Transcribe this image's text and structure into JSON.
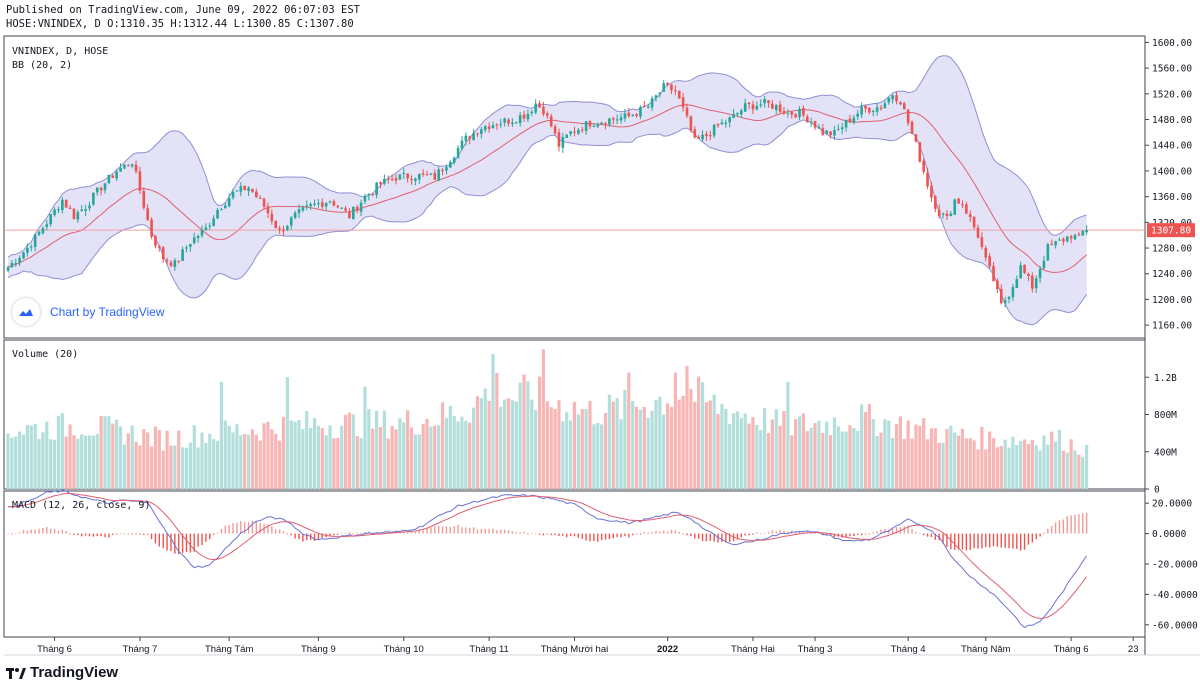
{
  "header": {
    "published": "Published on TradingView.com, June 09, 2022 06:07:03 EST",
    "ohlc": "HOSE:VNINDEX, D O:1310.35 H:1312.44 L:1300.85 C:1307.80"
  },
  "footer": {
    "brand": "TradingView"
  },
  "badge": {
    "label": "Chart by TradingView"
  },
  "colors": {
    "up": "#26a69a",
    "down": "#ef5350",
    "vol_up": "#b2dfdb",
    "vol_down": "#f7b6b5",
    "band_fill": "#e3e2f6",
    "band_line": "#8f8fd6",
    "basis": "#e06070",
    "macd": "#6b72d6",
    "signal": "#e06070"
  },
  "chart_data": [
    {
      "type": "candlestick",
      "title": "VNINDEX, D, HOSE",
      "indicator_label": "BB (20, 2)",
      "last_price_label": "1307.80",
      "ylim": [
        1140,
        1610
      ],
      "yticks": [
        1160,
        1200,
        1240,
        1280,
        1320,
        1360,
        1400,
        1440,
        1480,
        1520,
        1560,
        1600
      ],
      "ytick_labels": [
        "1160.00",
        "1200.00",
        "1240.00",
        "1280.00",
        "1320.00",
        "1360.00",
        "1400.00",
        "1440.00",
        "1480.00",
        "1520.00",
        "1560.00",
        "1600.00"
      ],
      "close_anchors": [
        [
          0,
          1250
        ],
        [
          5,
          1280
        ],
        [
          10,
          1320
        ],
        [
          14,
          1355
        ],
        [
          17,
          1330
        ],
        [
          20,
          1345
        ],
        [
          24,
          1375
        ],
        [
          28,
          1400
        ],
        [
          32,
          1415
        ],
        [
          34,
          1370
        ],
        [
          37,
          1300
        ],
        [
          40,
          1265
        ],
        [
          43,
          1255
        ],
        [
          47,
          1290
        ],
        [
          51,
          1310
        ],
        [
          54,
          1340
        ],
        [
          58,
          1365
        ],
        [
          62,
          1375
        ],
        [
          66,
          1345
        ],
        [
          70,
          1305
        ],
        [
          74,
          1330
        ],
        [
          78,
          1345
        ],
        [
          83,
          1355
        ],
        [
          88,
          1330
        ],
        [
          92,
          1360
        ],
        [
          96,
          1380
        ],
        [
          100,
          1390
        ],
        [
          105,
          1393
        ],
        [
          110,
          1390
        ],
        [
          114,
          1420
        ],
        [
          118,
          1450
        ],
        [
          122,
          1468
        ],
        [
          126,
          1475
        ],
        [
          130,
          1480
        ],
        [
          134,
          1490
        ],
        [
          136,
          1505
        ],
        [
          138,
          1495
        ],
        [
          140,
          1470
        ],
        [
          142,
          1440
        ],
        [
          145,
          1460
        ],
        [
          150,
          1475
        ],
        [
          155,
          1480
        ],
        [
          160,
          1485
        ],
        [
          165,
          1500
        ],
        [
          169,
          1530
        ],
        [
          172,
          1525
        ],
        [
          175,
          1480
        ],
        [
          177,
          1445
        ],
        [
          180,
          1455
        ],
        [
          183,
          1470
        ],
        [
          186,
          1480
        ],
        [
          190,
          1500
        ],
        [
          195,
          1505
        ],
        [
          198,
          1500
        ],
        [
          201,
          1490
        ],
        [
          204,
          1490
        ],
        [
          207,
          1478
        ],
        [
          210,
          1460
        ],
        [
          213,
          1458
        ],
        [
          216,
          1475
        ],
        [
          220,
          1495
        ],
        [
          225,
          1500
        ],
        [
          228,
          1520
        ],
        [
          230,
          1510
        ],
        [
          232,
          1475
        ],
        [
          234,
          1440
        ],
        [
          236,
          1400
        ],
        [
          238,
          1360
        ],
        [
          240,
          1335
        ],
        [
          242,
          1325
        ],
        [
          244,
          1355
        ],
        [
          246,
          1350
        ],
        [
          248,
          1325
        ],
        [
          250,
          1300
        ],
        [
          252,
          1260
        ],
        [
          254,
          1230
        ],
        [
          256,
          1190
        ],
        [
          258,
          1210
        ],
        [
          261,
          1250
        ],
        [
          264,
          1220
        ],
        [
          266,
          1250
        ],
        [
          268,
          1280
        ],
        [
          271,
          1290
        ],
        [
          274,
          1300
        ],
        [
          276,
          1295
        ],
        [
          277,
          1305
        ],
        [
          278,
          1307.8
        ]
      ],
      "points": 279,
      "bollinger": {
        "length": 20,
        "mult": 2
      }
    },
    {
      "type": "bar",
      "title": "Volume (20)",
      "ylim": [
        0,
        1600000000
      ],
      "yticks": [
        0,
        400000000,
        800000000,
        1200000000
      ],
      "ytick_labels": [
        "0",
        "400M",
        "800M",
        "1.2B"
      ],
      "volume_anchors": [
        [
          0,
          650
        ],
        [
          20,
          700
        ],
        [
          40,
          550
        ],
        [
          60,
          650
        ],
        [
          80,
          720
        ],
        [
          100,
          720
        ],
        [
          110,
          780
        ],
        [
          120,
          900
        ],
        [
          125,
          1150
        ],
        [
          130,
          1000
        ],
        [
          135,
          1050
        ],
        [
          140,
          950
        ],
        [
          150,
          850
        ],
        [
          160,
          900
        ],
        [
          170,
          1000
        ],
        [
          175,
          1100
        ],
        [
          180,
          950
        ],
        [
          190,
          820
        ],
        [
          200,
          700
        ],
        [
          210,
          720
        ],
        [
          220,
          780
        ],
        [
          230,
          700
        ],
        [
          240,
          620
        ],
        [
          250,
          560
        ],
        [
          260,
          540
        ],
        [
          270,
          560
        ],
        [
          278,
          430
        ]
      ],
      "volume_spikes": [
        [
          125,
          1450
        ],
        [
          138,
          1500
        ],
        [
          160,
          1250
        ],
        [
          175,
          1320
        ],
        [
          172,
          1250
        ],
        [
          201,
          1150
        ],
        [
          72,
          1200
        ],
        [
          92,
          1100
        ],
        [
          55,
          1150
        ]
      ]
    },
    {
      "type": "line",
      "title": "MACD (12, 26, close, 9)",
      "ylim": [
        -68,
        28
      ],
      "yticks": [
        20,
        0,
        -20,
        -40,
        -60
      ],
      "ytick_labels": [
        "20.0000",
        "0.0000",
        "-20.0000",
        "-40.0000",
        "-60.0000"
      ],
      "macd_anchors": [
        [
          0,
          17
        ],
        [
          6,
          22
        ],
        [
          10,
          27
        ],
        [
          14,
          28
        ],
        [
          18,
          25
        ],
        [
          22,
          22
        ],
        [
          26,
          20
        ],
        [
          30,
          22
        ],
        [
          36,
          20
        ],
        [
          40,
          5
        ],
        [
          44,
          -12
        ],
        [
          48,
          -22
        ],
        [
          52,
          -21
        ],
        [
          56,
          -10
        ],
        [
          60,
          0
        ],
        [
          64,
          8
        ],
        [
          68,
          11
        ],
        [
          72,
          8
        ],
        [
          76,
          0
        ],
        [
          80,
          -4
        ],
        [
          86,
          -2
        ],
        [
          92,
          0
        ],
        [
          100,
          1
        ],
        [
          106,
          4
        ],
        [
          110,
          10
        ],
        [
          116,
          18
        ],
        [
          122,
          22
        ],
        [
          128,
          25
        ],
        [
          134,
          25
        ],
        [
          140,
          23
        ],
        [
          146,
          19
        ],
        [
          152,
          10
        ],
        [
          160,
          7
        ],
        [
          166,
          10
        ],
        [
          172,
          14
        ],
        [
          176,
          10
        ],
        [
          180,
          2
        ],
        [
          186,
          -7
        ],
        [
          192,
          -5
        ],
        [
          198,
          -1
        ],
        [
          204,
          2
        ],
        [
          210,
          0
        ],
        [
          216,
          -5
        ],
        [
          222,
          -4
        ],
        [
          228,
          3
        ],
        [
          232,
          9
        ],
        [
          236,
          5
        ],
        [
          240,
          -2
        ],
        [
          244,
          -18
        ],
        [
          248,
          -28
        ],
        [
          254,
          -40
        ],
        [
          258,
          -50
        ],
        [
          262,
          -62
        ],
        [
          266,
          -58
        ],
        [
          270,
          -45
        ],
        [
          274,
          -30
        ],
        [
          278,
          -14
        ]
      ],
      "signal_period": 9
    }
  ],
  "x_axis": {
    "labels": [
      {
        "i": 12,
        "text": "Tháng 6"
      },
      {
        "i": 34,
        "text": "Tháng 7"
      },
      {
        "i": 57,
        "text": "Tháng Tám"
      },
      {
        "i": 80,
        "text": "Tháng 9"
      },
      {
        "i": 102,
        "text": "Tháng 10"
      },
      {
        "i": 124,
        "text": "Tháng 11"
      },
      {
        "i": 146,
        "text": "Tháng Mười hai"
      },
      {
        "i": 170,
        "text": "2022"
      },
      {
        "i": 192,
        "text": "Tháng Hai"
      },
      {
        "i": 208,
        "text": "Tháng 3"
      },
      {
        "i": 232,
        "text": "Tháng 4"
      },
      {
        "i": 252,
        "text": "Tháng Năm"
      },
      {
        "i": 274,
        "text": "Tháng 6"
      },
      {
        "i": 290,
        "text": "23"
      }
    ]
  }
}
